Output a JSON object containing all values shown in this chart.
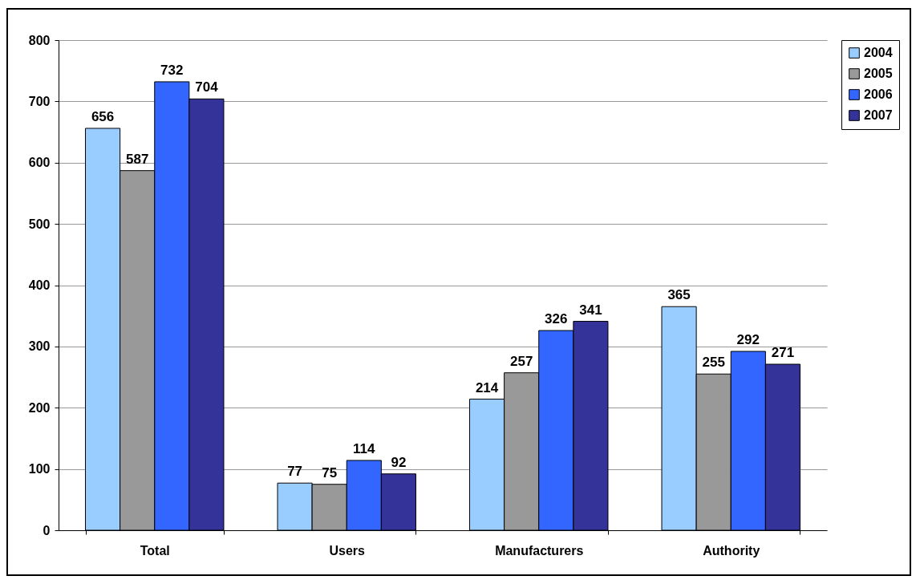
{
  "chart_data": {
    "type": "bar",
    "categories": [
      "Total",
      "Users",
      "Manufacturers",
      "Authority"
    ],
    "series": [
      {
        "name": "2004",
        "color": "#99ccff",
        "values": [
          656,
          77,
          214,
          365
        ]
      },
      {
        "name": "2005",
        "color": "#999999",
        "values": [
          587,
          75,
          257,
          255
        ]
      },
      {
        "name": "2006",
        "color": "#3366ff",
        "values": [
          732,
          114,
          326,
          292
        ]
      },
      {
        "name": "2007",
        "color": "#333399",
        "values": [
          704,
          92,
          341,
          271
        ]
      }
    ],
    "ylim": [
      0,
      800
    ],
    "yticks": [
      0,
      100,
      200,
      300,
      400,
      500,
      600,
      700,
      800
    ],
    "grid": "y",
    "legend": "right",
    "data_labels": true
  }
}
